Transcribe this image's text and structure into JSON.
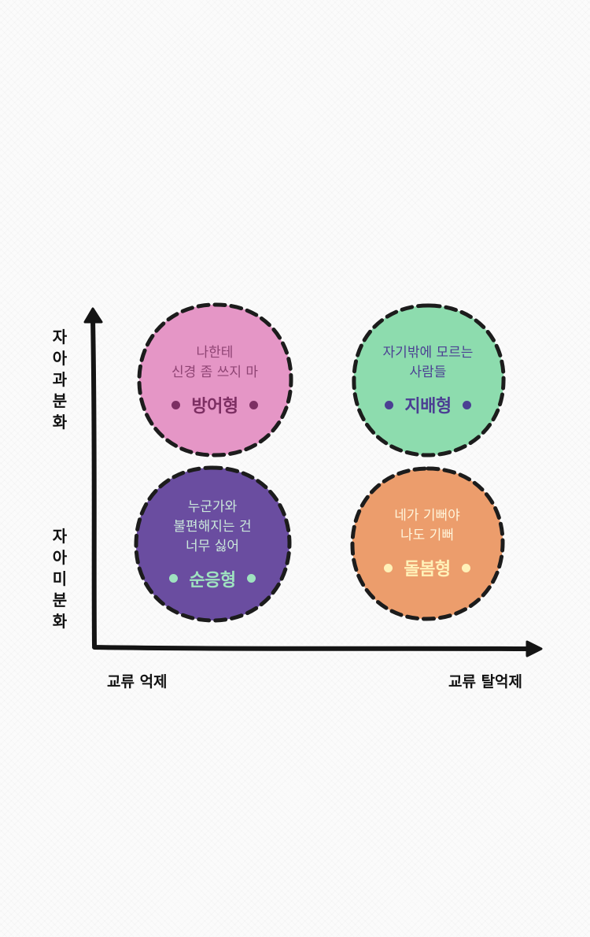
{
  "y_axis": {
    "top_label": "자아과분화",
    "bottom_label": "자아미분화"
  },
  "x_axis": {
    "left_label": "교류 억제",
    "right_label": "교류 탈억제"
  },
  "quadrants": [
    {
      "key": "defensive",
      "caption_lines": [
        "나한테",
        "신경 좀 쓰지 마"
      ],
      "type_name": "방어형",
      "fill": "#e596c6",
      "text_color": "#8f4474",
      "accent_color": "#7d2f63"
    },
    {
      "key": "dominant",
      "caption_lines": [
        "자기밖에 모르는",
        "사람들"
      ],
      "type_name": "지배형",
      "fill": "#8ddcae",
      "text_color": "#4b3f93",
      "accent_color": "#4b3f93"
    },
    {
      "key": "submissive",
      "caption_lines": [
        "누군가와",
        "불편해지는 건",
        "너무 싫어"
      ],
      "type_name": "순응형",
      "fill": "#6a4da0",
      "text_color": "#cbe9db",
      "accent_color": "#9fe3c0"
    },
    {
      "key": "caring",
      "caption_lines": [
        "네가 기뻐야",
        "나도 기뻐"
      ],
      "type_name": "돌봄형",
      "fill": "#ec9d6c",
      "text_color": "#fff6dc",
      "accent_color": "#fff1b8"
    }
  ],
  "colors": {
    "axis": "#141414",
    "border": "#1c1c1c"
  }
}
